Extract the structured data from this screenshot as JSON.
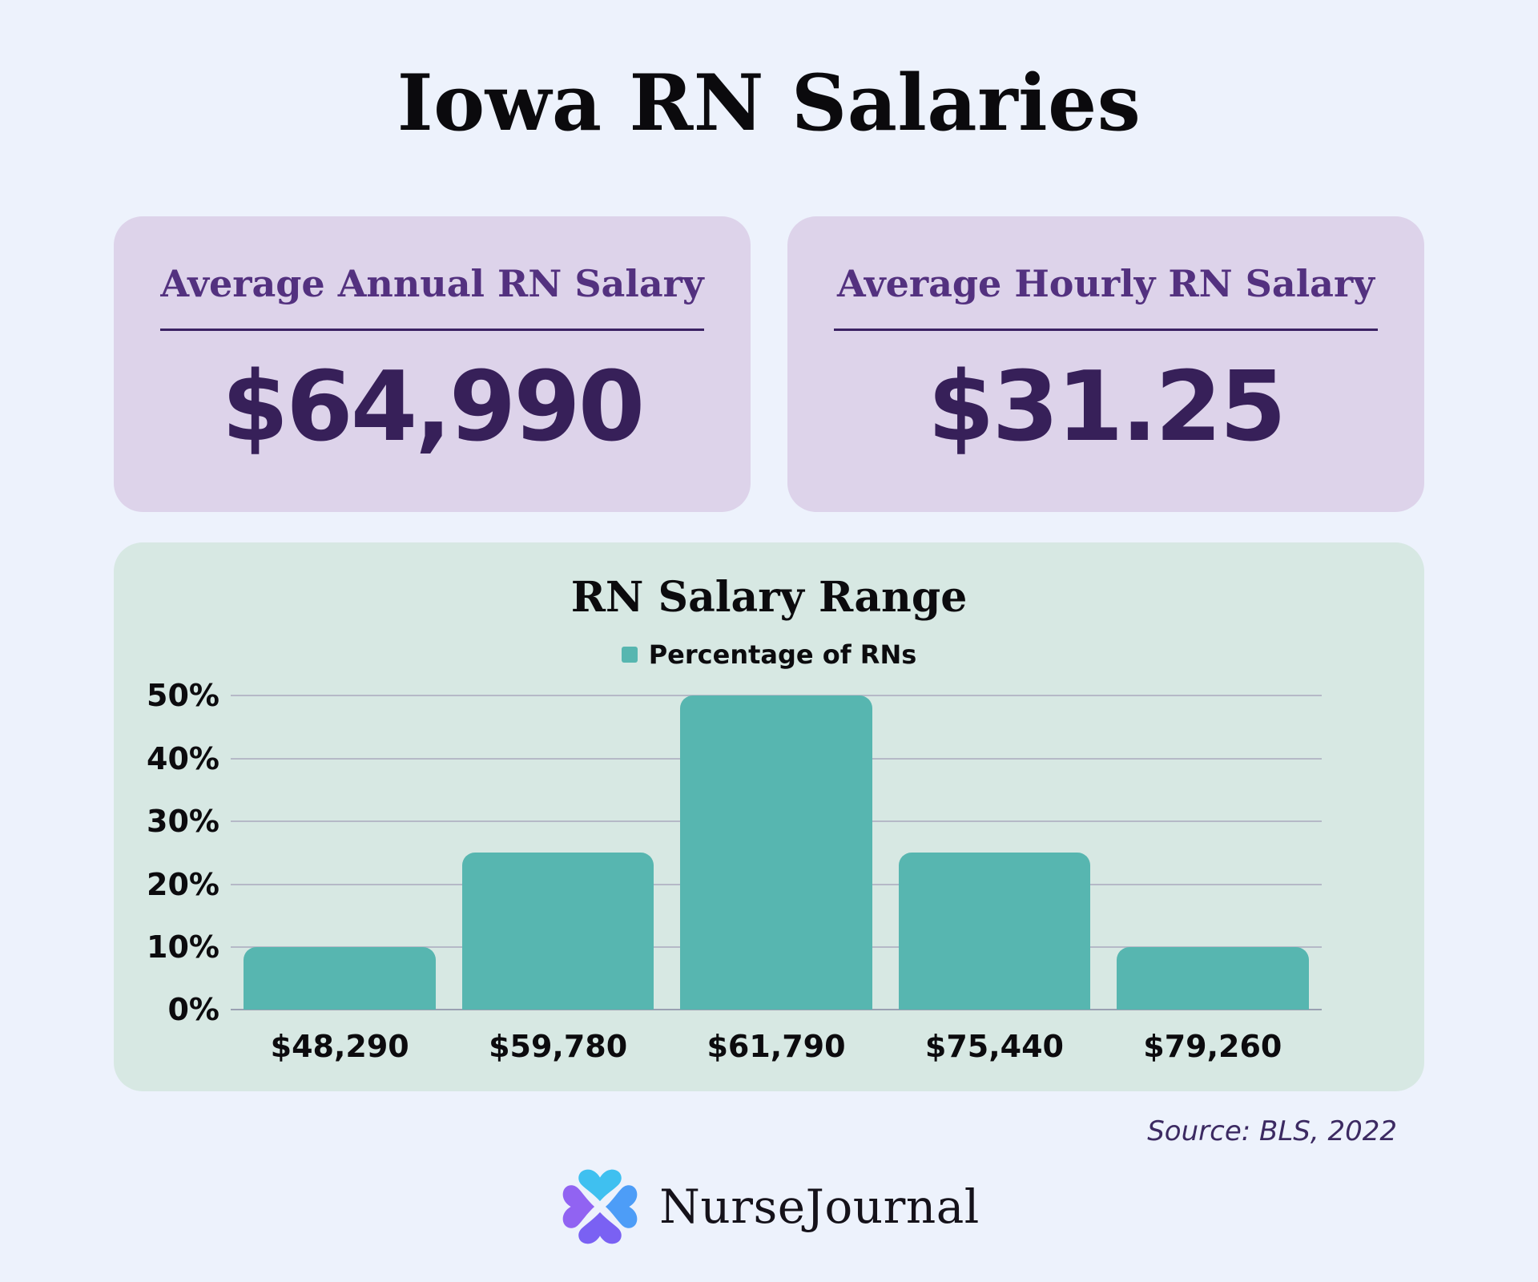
{
  "page": {
    "title": "Iowa RN Salaries",
    "source": "Source: BLS, 2022"
  },
  "cards": [
    {
      "label": "Average Annual RN Salary",
      "value": "$64,990"
    },
    {
      "label": "Average Hourly RN Salary",
      "value": "$31.25"
    }
  ],
  "chart_data": {
    "type": "bar",
    "title": "RN Salary Range",
    "legend": "Percentage of RNs",
    "legend_position": "top",
    "categories": [
      "$48,290",
      "$59,780",
      "$61,790",
      "$75,440",
      "$79,260"
    ],
    "values": [
      10,
      25,
      50,
      25,
      10
    ],
    "ylim": [
      0,
      50
    ],
    "yticks": [
      0,
      10,
      20,
      30,
      40,
      50
    ],
    "ytick_suffix": "%",
    "grid": true,
    "xlabel": "",
    "ylabel": "",
    "bar_color": "#57b6b0"
  },
  "footer": {
    "brand": "NurseJournal"
  },
  "colors": {
    "page_bg": "#edf2fc",
    "card_bg": "#ddd3ea",
    "card_label": "#53317f",
    "card_value": "#372059",
    "panel_bg": "#d7e8e3",
    "bar_teal": "#57b6b0",
    "gridline": "#b5b9c7",
    "source_text": "#3c2a62",
    "logo_top": "#3fc0f0",
    "logo_right": "#4d9df7",
    "logo_bottom": "#7a61f3",
    "logo_left": "#9163f2"
  }
}
